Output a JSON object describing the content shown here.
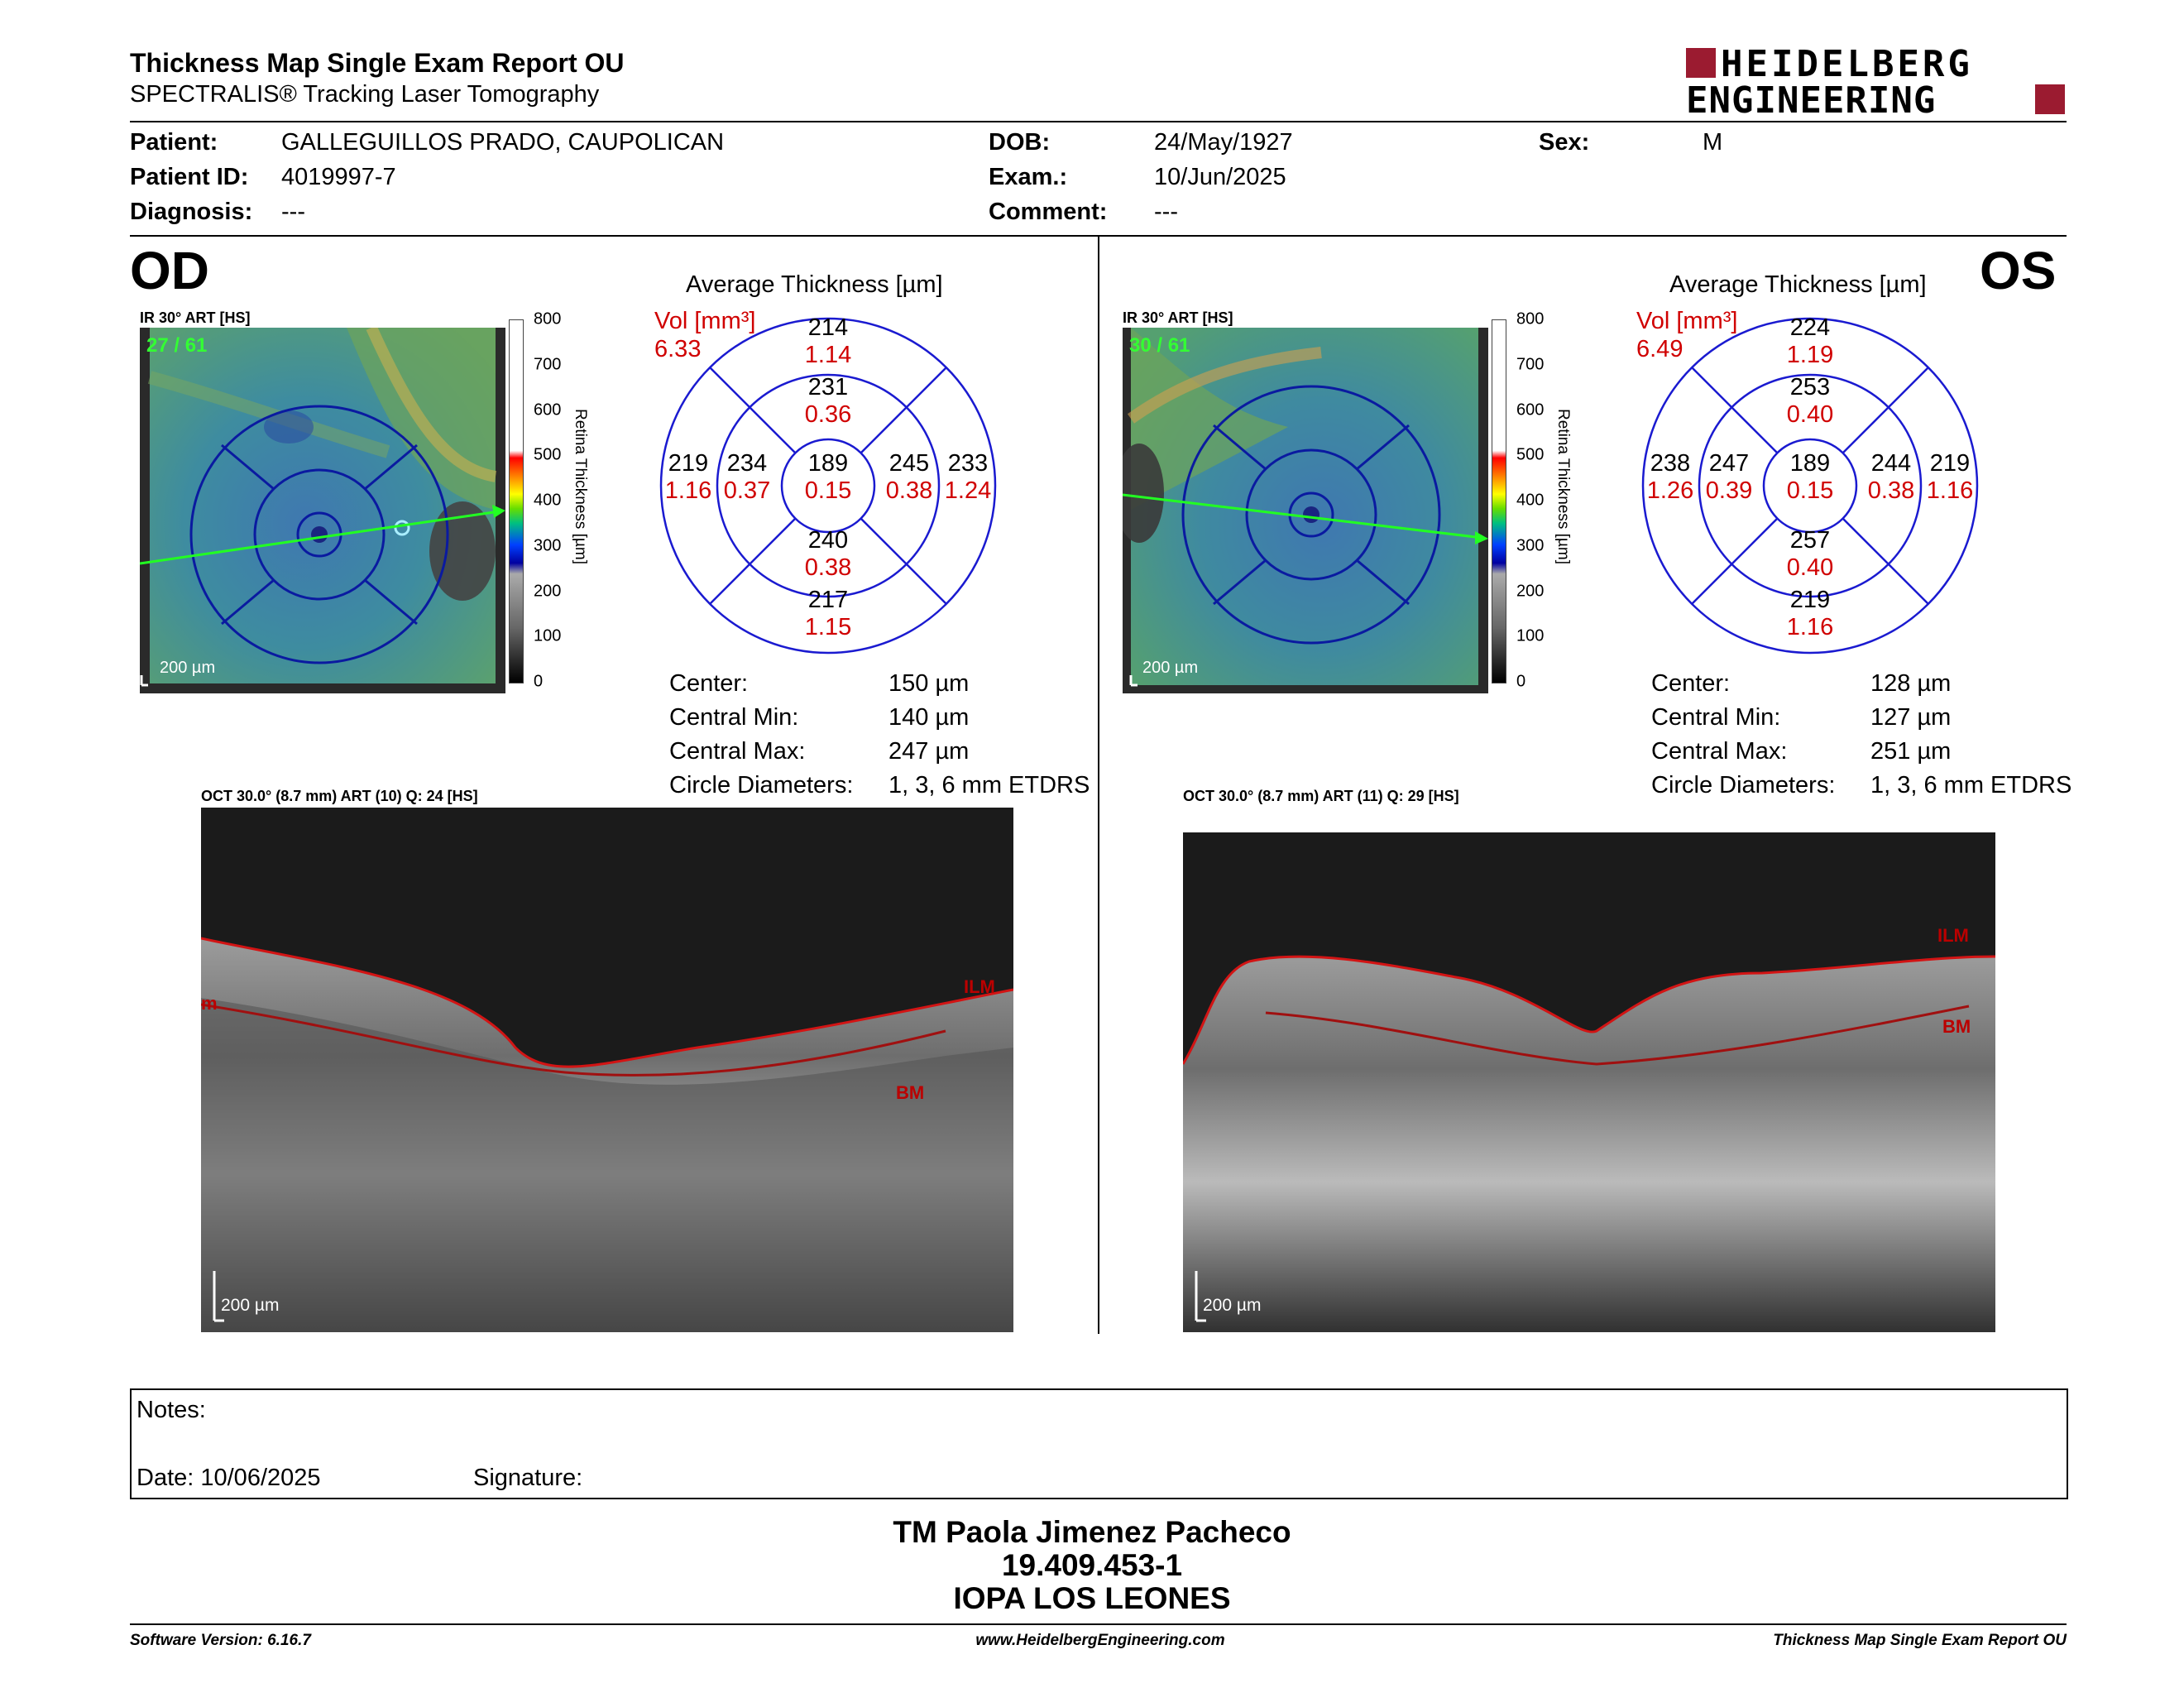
{
  "header": {
    "title": "Thickness Map Single Exam Report OU",
    "subtitle": "SPECTRALIS® Tracking Laser Tomography",
    "logo_line1": "HEIDELBERG",
    "logo_line2": "ENGINEERING",
    "brand_color": "#9b1b30"
  },
  "patient": {
    "patient_label": "Patient:",
    "patient_value": "GALLEGUILLOS PRADO, CAUPOLICAN",
    "id_label": "Patient ID:",
    "id_value": "4019997-7",
    "diagnosis_label": "Diagnosis:",
    "diagnosis_value": "---",
    "dob_label": "DOB:",
    "dob_value": "24/May/1927",
    "exam_label": "Exam.:",
    "exam_value": "10/Jun/2025",
    "comment_label": "Comment:",
    "comment_value": "---",
    "sex_label": "Sex:",
    "sex_value": "M"
  },
  "scale": {
    "ticks": [
      "800",
      "700",
      "600",
      "500",
      "400",
      "300",
      "200",
      "100",
      "0"
    ],
    "label": "Retina Thickness [µm]"
  },
  "od": {
    "eye": "OD",
    "ir_label": "IR 30° ART [HS]",
    "frame": "27 / 61",
    "scale_bar": "200 µm",
    "avg_title": "Average Thickness [µm]",
    "vol_label": "Vol [mm³]",
    "vol_value": "6.33",
    "grid": {
      "center": {
        "t": "189",
        "v": "0.15"
      },
      "inner_sup": {
        "t": "231",
        "v": "0.36"
      },
      "inner_inf": {
        "t": "240",
        "v": "0.38"
      },
      "inner_left": {
        "t": "234",
        "v": "0.37"
      },
      "inner_right": {
        "t": "245",
        "v": "0.38"
      },
      "outer_sup": {
        "t": "214",
        "v": "1.14"
      },
      "outer_inf": {
        "t": "217",
        "v": "1.15"
      },
      "outer_left": {
        "t": "219",
        "v": "1.16"
      },
      "outer_right": {
        "t": "233",
        "v": "1.24"
      }
    },
    "stats": {
      "center_label": "Center:",
      "center_value": "150 µm",
      "min_label": "Central Min:",
      "min_value": "140 µm",
      "max_label": "Central Max:",
      "max_value": "247 µm",
      "diam_label": "Circle Diameters:",
      "diam_value": "1, 3, 6 mm ETDRS"
    },
    "oct_label": "OCT 30.0° (8.7 mm) ART (10) Q: 24 [HS]",
    "oct_scale": "200 µm",
    "ilm": "ILM",
    "bm": "BM",
    "m": "m"
  },
  "os": {
    "eye": "OS",
    "ir_label": "IR 30° ART [HS]",
    "frame": "30 / 61",
    "scale_bar": "200 µm",
    "avg_title": "Average Thickness [µm]",
    "vol_label": "Vol [mm³]",
    "vol_value": "6.49",
    "grid": {
      "center": {
        "t": "189",
        "v": "0.15"
      },
      "inner_sup": {
        "t": "253",
        "v": "0.40"
      },
      "inner_inf": {
        "t": "257",
        "v": "0.40"
      },
      "inner_left": {
        "t": "247",
        "v": "0.39"
      },
      "inner_right": {
        "t": "244",
        "v": "0.38"
      },
      "outer_sup": {
        "t": "224",
        "v": "1.19"
      },
      "outer_inf": {
        "t": "219",
        "v": "1.16"
      },
      "outer_left": {
        "t": "238",
        "v": "1.26"
      },
      "outer_right": {
        "t": "219",
        "v": "1.16"
      }
    },
    "stats": {
      "center_label": "Center:",
      "center_value": "128 µm",
      "min_label": "Central Min:",
      "min_value": "127 µm",
      "max_label": "Central Max:",
      "max_value": "251 µm",
      "diam_label": "Circle Diameters:",
      "diam_value": "1, 3, 6 mm ETDRS"
    },
    "oct_label": "OCT 30.0° (8.7 mm) ART (11) Q: 29 [HS]",
    "oct_scale": "200 µm",
    "ilm": "ILM",
    "bm": "BM"
  },
  "notes": {
    "notes_label": "Notes:",
    "date_label": "Date: 10/06/2025",
    "signature_label": "Signature:"
  },
  "signoff": {
    "name": "TM Paola Jimenez Pacheco",
    "rut": "19.409.453-1",
    "org": "IOPA LOS LEONES"
  },
  "footer": {
    "version": "Software Version: 6.16.7",
    "url": "www.HeidelbergEngineering.com",
    "report": "Thickness Map Single Exam Report OU"
  }
}
